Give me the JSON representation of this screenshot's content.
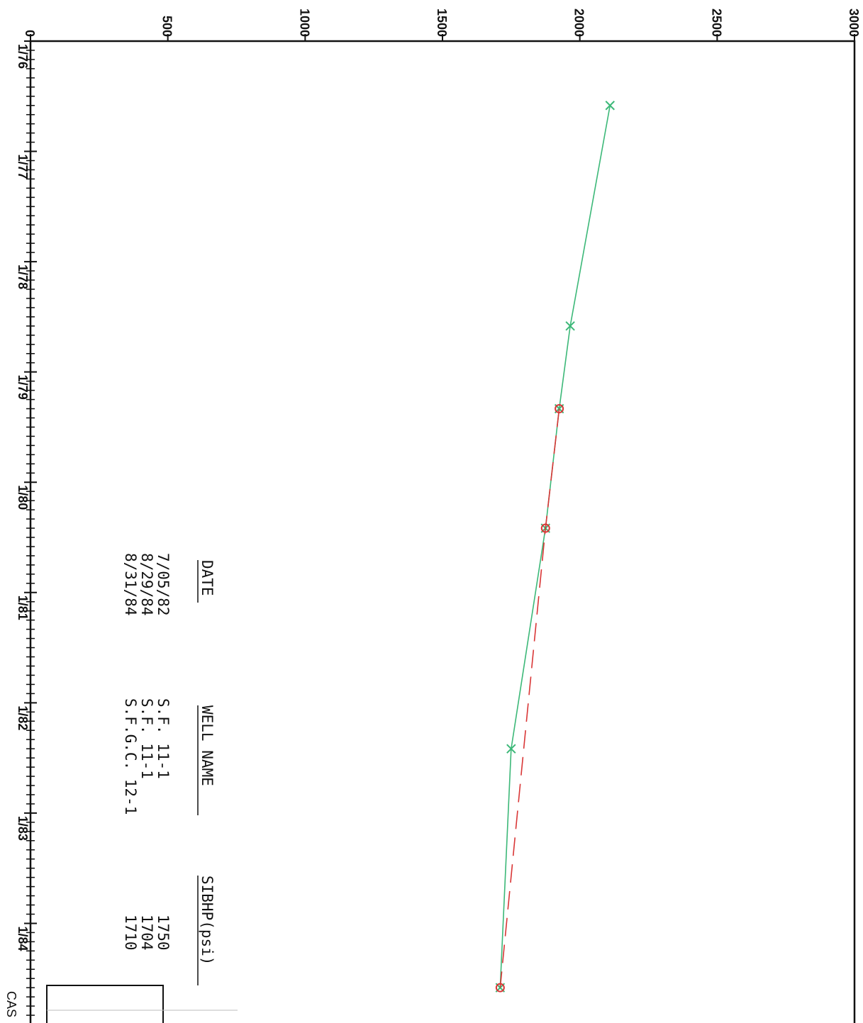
{
  "chart_data": {
    "type": "line",
    "title": "",
    "xlabel": "",
    "ylabel": "",
    "x_tick_labels": [
      "1/76",
      "1/77",
      "1/78",
      "1/79",
      "1/80",
      "1/81",
      "1/82",
      "1/83",
      "1/84"
    ],
    "y_tick_labels": [
      "0",
      "500",
      "1000",
      "1500",
      "2000",
      "2500",
      "3000"
    ],
    "ylim": [
      0,
      3000
    ],
    "xlim": [
      "1976-01",
      "1984-12"
    ],
    "grid": false,
    "series": [
      {
        "name": "",
        "color": "#3cb878",
        "marker": "x",
        "style": "solid",
        "points": [
          {
            "x": "1976-08",
            "y": 2110
          },
          {
            "x": "1978-08",
            "y": 1965
          },
          {
            "x": "1979-05",
            "y": 1925
          },
          {
            "x": "1980-06",
            "y": 1875
          },
          {
            "x": "1982-06",
            "y": 1750
          },
          {
            "x": "1984-08",
            "y": 1710
          }
        ]
      },
      {
        "name": "",
        "color": "#d93636",
        "marker": "o",
        "style": "dashed",
        "points": [
          {
            "x": "1979-05",
            "y": 1925
          },
          {
            "x": "1980-06",
            "y": 1875
          },
          {
            "x": "1984-08",
            "y": 1710
          }
        ]
      }
    ]
  },
  "table": {
    "headers": {
      "date": "DATE",
      "well": "WELL NAME",
      "sibhp": "SIBHP(psi)"
    },
    "rows": [
      {
        "date": "7/05/82",
        "well": "S.F. 11-1",
        "sibhp": "1750"
      },
      {
        "date": "8/29/84",
        "well": "S.F. 11-1",
        "sibhp": "1704"
      },
      {
        "date": "8/31/84",
        "well": "S.F.G.C. 12-1",
        "sibhp": "1710"
      }
    ]
  },
  "corner_box": {
    "label": "CAS"
  }
}
